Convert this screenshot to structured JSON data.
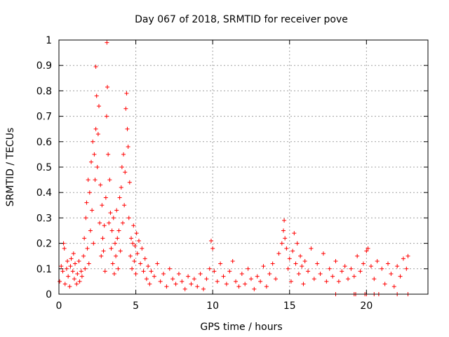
{
  "chart_data": {
    "type": "scatter",
    "title": "Day 067 of 2018, SRMTID for receiver pove",
    "xlabel": "GPS time / hours",
    "ylabel": "SRMTID / TECUs",
    "xlim": [
      0,
      24
    ],
    "ylim": [
      0,
      1
    ],
    "xticks": [
      0,
      5,
      10,
      15,
      20
    ],
    "xtick_labels": [
      "0",
      "5",
      "10",
      "15",
      "20"
    ],
    "yticks": [
      0,
      0.1,
      0.2,
      0.3,
      0.4,
      0.5,
      0.6,
      0.7,
      0.8,
      0.9,
      1
    ],
    "ytick_labels": [
      "0",
      "0.1",
      "0.2",
      "0.3",
      "0.4",
      "0.5",
      "0.6",
      "0.7",
      "0.8",
      "0.9",
      "1"
    ],
    "grid": true,
    "marker": "+",
    "marker_color": "#ff0000",
    "series": [
      {
        "name": "SRMTID",
        "points": [
          [
            0.05,
            0.05
          ],
          [
            0.15,
            0.11
          ],
          [
            0.25,
            0.09
          ],
          [
            0.3,
            0.2
          ],
          [
            0.35,
            0.18
          ],
          [
            0.4,
            0.04
          ],
          [
            0.5,
            0.1
          ],
          [
            0.55,
            0.13
          ],
          [
            0.6,
            0.07
          ],
          [
            0.7,
            0.03
          ],
          [
            0.75,
            0.11
          ],
          [
            0.8,
            0.14
          ],
          [
            0.9,
            0.09
          ],
          [
            0.95,
            0.16
          ],
          [
            1.0,
            0.06
          ],
          [
            1.05,
            0.12
          ],
          [
            1.15,
            0.04
          ],
          [
            1.2,
            0.08
          ],
          [
            1.3,
            0.13
          ],
          [
            1.35,
            0.05
          ],
          [
            1.45,
            0.09
          ],
          [
            1.5,
            0.07
          ],
          [
            1.6,
            0.15
          ],
          [
            1.65,
            0.22
          ],
          [
            1.7,
            0.1
          ],
          [
            1.75,
            0.3
          ],
          [
            1.8,
            0.36
          ],
          [
            1.85,
            0.18
          ],
          [
            1.9,
            0.45
          ],
          [
            1.95,
            0.12
          ],
          [
            2.0,
            0.4
          ],
          [
            2.05,
            0.25
          ],
          [
            2.1,
            0.52
          ],
          [
            2.15,
            0.33
          ],
          [
            2.2,
            0.6
          ],
          [
            2.25,
            0.2
          ],
          [
            2.3,
            0.55
          ],
          [
            2.35,
            0.45
          ],
          [
            2.4,
            0.65
          ],
          [
            2.4,
            0.895
          ],
          [
            2.45,
            0.78
          ],
          [
            2.5,
            0.5
          ],
          [
            2.55,
            0.63
          ],
          [
            2.6,
            0.74
          ],
          [
            2.65,
            0.28
          ],
          [
            2.7,
            0.43
          ],
          [
            2.75,
            0.15
          ],
          [
            2.8,
            0.35
          ],
          [
            2.85,
            0.22
          ],
          [
            2.9,
            0.17
          ],
          [
            2.95,
            0.27
          ],
          [
            3.0,
            0.09
          ],
          [
            3.05,
            0.38
          ],
          [
            3.1,
            0.7
          ],
          [
            3.12,
            0.99
          ],
          [
            3.15,
            0.815
          ],
          [
            3.2,
            0.55
          ],
          [
            3.25,
            0.28
          ],
          [
            3.3,
            0.45
          ],
          [
            3.35,
            0.32
          ],
          [
            3.4,
            0.18
          ],
          [
            3.45,
            0.25
          ],
          [
            3.5,
            0.12
          ],
          [
            3.55,
            0.3
          ],
          [
            3.6,
            0.08
          ],
          [
            3.65,
            0.2
          ],
          [
            3.7,
            0.15
          ],
          [
            3.75,
            0.33
          ],
          [
            3.8,
            0.22
          ],
          [
            3.85,
            0.1
          ],
          [
            3.9,
            0.25
          ],
          [
            3.95,
            0.38
          ],
          [
            4.0,
            0.17
          ],
          [
            4.05,
            0.42
          ],
          [
            4.1,
            0.5
          ],
          [
            4.15,
            0.28
          ],
          [
            4.2,
            0.55
          ],
          [
            4.25,
            0.35
          ],
          [
            4.3,
            0.48
          ],
          [
            4.35,
            0.73
          ],
          [
            4.4,
            0.79
          ],
          [
            4.45,
            0.65
          ],
          [
            4.5,
            0.58
          ],
          [
            4.55,
            0.3
          ],
          [
            4.6,
            0.44
          ],
          [
            4.65,
            0.15
          ],
          [
            4.7,
            0.22
          ],
          [
            4.75,
            0.1
          ],
          [
            4.8,
            0.2
          ],
          [
            4.85,
            0.27
          ],
          [
            4.9,
            0.13
          ],
          [
            4.95,
            0.19
          ],
          [
            5.0,
            0.08
          ],
          [
            5.05,
            0.24
          ],
          [
            5.1,
            0.16
          ],
          [
            5.2,
            0.21
          ],
          [
            5.3,
            0.12
          ],
          [
            5.4,
            0.18
          ],
          [
            5.5,
            0.09
          ],
          [
            5.6,
            0.14
          ],
          [
            5.7,
            0.06
          ],
          [
            5.8,
            0.11
          ],
          [
            5.9,
            0.04
          ],
          [
            6.0,
            0.09
          ],
          [
            6.2,
            0.07
          ],
          [
            6.4,
            0.12
          ],
          [
            6.6,
            0.05
          ],
          [
            6.8,
            0.08
          ],
          [
            7.0,
            0.03
          ],
          [
            7.2,
            0.1
          ],
          [
            7.4,
            0.06
          ],
          [
            7.6,
            0.04
          ],
          [
            7.8,
            0.08
          ],
          [
            8.0,
            0.05
          ],
          [
            8.2,
            0.02
          ],
          [
            8.4,
            0.07
          ],
          [
            8.6,
            0.04
          ],
          [
            8.8,
            0.06
          ],
          [
            9.0,
            0.03
          ],
          [
            9.2,
            0.08
          ],
          [
            9.4,
            0.02
          ],
          [
            9.6,
            0.06
          ],
          [
            9.8,
            0.1
          ],
          [
            9.9,
            0.21
          ],
          [
            10.0,
            0.18
          ],
          [
            10.1,
            0.09
          ],
          [
            10.3,
            0.05
          ],
          [
            10.5,
            0.12
          ],
          [
            10.7,
            0.07
          ],
          [
            10.9,
            0.04
          ],
          [
            11.1,
            0.09
          ],
          [
            11.3,
            0.13
          ],
          [
            11.5,
            0.05
          ],
          [
            11.7,
            0.03
          ],
          [
            11.9,
            0.08
          ],
          [
            12.1,
            0.04
          ],
          [
            12.3,
            0.1
          ],
          [
            12.5,
            0.06
          ],
          [
            12.7,
            0.02
          ],
          [
            12.9,
            0.07
          ],
          [
            13.1,
            0.05
          ],
          [
            13.3,
            0.11
          ],
          [
            13.5,
            0.03
          ],
          [
            13.7,
            0.08
          ],
          [
            13.9,
            0.12
          ],
          [
            14.1,
            0.06
          ],
          [
            14.3,
            0.16
          ],
          [
            14.5,
            0.2
          ],
          [
            14.6,
            0.25
          ],
          [
            14.65,
            0.29
          ],
          [
            14.7,
            0.22
          ],
          [
            14.8,
            0.18
          ],
          [
            14.9,
            0.1
          ],
          [
            15.0,
            0.14
          ],
          [
            15.1,
            0.05
          ],
          [
            15.2,
            0.17
          ],
          [
            15.3,
            0.24
          ],
          [
            15.4,
            0.12
          ],
          [
            15.5,
            0.2
          ],
          [
            15.6,
            0.08
          ],
          [
            15.7,
            0.15
          ],
          [
            15.8,
            0.11
          ],
          [
            15.9,
            0.04
          ],
          [
            16.0,
            0.13
          ],
          [
            16.2,
            0.09
          ],
          [
            16.4,
            0.18
          ],
          [
            16.6,
            0.06
          ],
          [
            16.8,
            0.12
          ],
          [
            17.0,
            0.08
          ],
          [
            17.2,
            0.16
          ],
          [
            17.4,
            0.05
          ],
          [
            17.6,
            0.1
          ],
          [
            17.8,
            0.07
          ],
          [
            18.0,
            0.13
          ],
          [
            18.2,
            0.05
          ],
          [
            18.4,
            0.09
          ],
          [
            18.6,
            0.11
          ],
          [
            18.8,
            0.06
          ],
          [
            19.0,
            0.1
          ],
          [
            19.2,
            0.07
          ],
          [
            19.4,
            0.15
          ],
          [
            19.6,
            0.09
          ],
          [
            19.8,
            0.12
          ],
          [
            20.0,
            0.17
          ],
          [
            20.1,
            0.18
          ],
          [
            20.3,
            0.11
          ],
          [
            20.5,
            0.06
          ],
          [
            20.7,
            0.13
          ],
          [
            21.0,
            0.1
          ],
          [
            21.2,
            0.04
          ],
          [
            21.4,
            0.12
          ],
          [
            21.6,
            0.08
          ],
          [
            21.8,
            0.03
          ],
          [
            22.0,
            0.11
          ],
          [
            22.2,
            0.07
          ],
          [
            22.4,
            0.14
          ],
          [
            22.6,
            0.1
          ],
          [
            22.7,
            0.15
          ],
          [
            18.0,
            0
          ],
          [
            19.2,
            0
          ],
          [
            19.3,
            0
          ],
          [
            19.9,
            0
          ],
          [
            20.0,
            0
          ],
          [
            20.5,
            0
          ],
          [
            20.8,
            0
          ],
          [
            22.0,
            0
          ],
          [
            22.7,
            0
          ]
        ]
      }
    ]
  }
}
